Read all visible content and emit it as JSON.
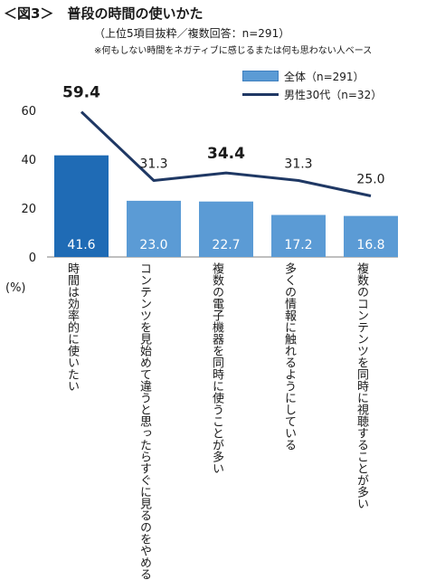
{
  "header": {
    "title": "＜図3＞　普段の時間の使いかた",
    "subtitle": "（上位5項目抜粋／複数回答：n=291）",
    "note": "※何もしない時間をネガティブに感じるまたは何も思わない人ベース"
  },
  "colors": {
    "bar_primary": "#1f6bb5",
    "bar_secondary": "#5b9bd5",
    "line": "#1f3864"
  },
  "chart_data": {
    "type": "bar",
    "categories": [
      "時間は効率的に使いたい",
      "コンテンツを見始めて違うと思ったらすぐに見るのをやめる",
      "複数の電子機器を同時に使うことが多い",
      "多くの情報に触れるようにしている",
      "複数のコンテンツを同時に視聴することが多い"
    ],
    "series": [
      {
        "name": "全体（n=291）",
        "type": "bar",
        "values": [
          41.6,
          23.0,
          22.7,
          17.2,
          16.8
        ],
        "labels": [
          "41.6",
          "23.0",
          "22.7",
          "17.2",
          "16.8"
        ]
      },
      {
        "name": "男性30代（n=32）",
        "type": "line",
        "values": [
          59.4,
          31.3,
          34.4,
          31.3,
          25.0
        ],
        "labels": [
          "59.4",
          "31.3",
          "34.4",
          "31.3",
          "25.0"
        ]
      }
    ],
    "ylim": [
      0,
      60
    ],
    "yticks": [
      "0",
      "20",
      "40",
      "60"
    ],
    "yunit": "(%)",
    "legend_position": "top-right"
  }
}
